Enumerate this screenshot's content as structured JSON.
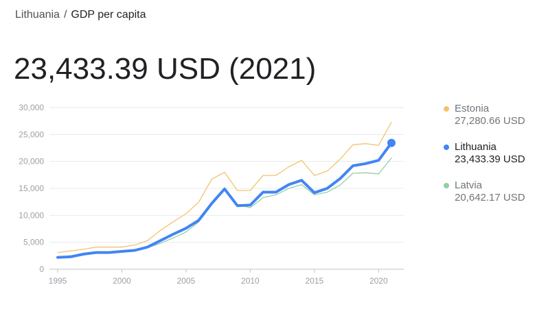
{
  "breadcrumb": {
    "country": "Lithuania",
    "separator": "/",
    "indicator": "GDP per capita"
  },
  "headline": "23,433.39 USD (2021)",
  "colors": {
    "estonia": "#f2c46c",
    "lithuania": "#4285f4",
    "latvia": "#93cea5",
    "grid": "#e8eaed",
    "axis": "#bdc1c6",
    "tick_text": "#9aa0a6"
  },
  "legend": [
    {
      "name": "Estonia",
      "value": "27,280.66 USD",
      "color_key": "estonia"
    },
    {
      "name": "Lithuania",
      "value": "23,433.39 USD",
      "color_key": "lithuania"
    },
    {
      "name": "Latvia",
      "value": "20,642.17 USD",
      "color_key": "latvia"
    }
  ],
  "chart_data": {
    "type": "line",
    "x": [
      1995,
      1996,
      1997,
      1998,
      1999,
      2000,
      2001,
      2002,
      2003,
      2004,
      2005,
      2006,
      2007,
      2008,
      2009,
      2010,
      2011,
      2012,
      2013,
      2014,
      2015,
      2016,
      2017,
      2018,
      2019,
      2020,
      2021
    ],
    "series": [
      {
        "name": "Estonia",
        "color_key": "estonia",
        "values": [
          3100,
          3400,
          3700,
          4100,
          4100,
          4100,
          4500,
          5300,
          7200,
          8800,
          10300,
          12500,
          16700,
          18000,
          14600,
          14600,
          17400,
          17400,
          19000,
          20200,
          17400,
          18200,
          20400,
          23100,
          23300,
          23000,
          27280.66
        ]
      },
      {
        "name": "Latvia",
        "color_key": "latvia",
        "values": [
          2300,
          2500,
          2800,
          3100,
          3200,
          3300,
          3500,
          4000,
          4800,
          5800,
          6900,
          8800,
          12400,
          14700,
          12000,
          11400,
          13300,
          13800,
          15000,
          15700,
          13800,
          14300,
          15600,
          17800,
          17900,
          17700,
          20642.17
        ]
      },
      {
        "name": "Lithuania",
        "color_key": "lithuania",
        "values": [
          2200,
          2300,
          2800,
          3100,
          3100,
          3300,
          3500,
          4100,
          5300,
          6500,
          7600,
          9100,
          12200,
          14900,
          11800,
          11900,
          14300,
          14300,
          15700,
          16500,
          14200,
          15000,
          16800,
          19200,
          19600,
          20200,
          23433.39
        ]
      }
    ],
    "xlim": [
      1995,
      2021
    ],
    "ylim": [
      0,
      30000
    ],
    "x_ticks": [
      1995,
      2000,
      2005,
      2010,
      2015,
      2020
    ],
    "y_ticks": [
      0,
      5000,
      10000,
      15000,
      20000,
      25000,
      30000
    ],
    "x_tick_labels": [
      "1995",
      "2000",
      "2005",
      "2010",
      "2015",
      "2020"
    ],
    "y_tick_labels": [
      "0",
      "5,000",
      "10,000",
      "15,000",
      "20,000",
      "25,000",
      "30,000"
    ],
    "grid": true,
    "legend_position": "right",
    "highlighted_series": "Lithuania"
  }
}
